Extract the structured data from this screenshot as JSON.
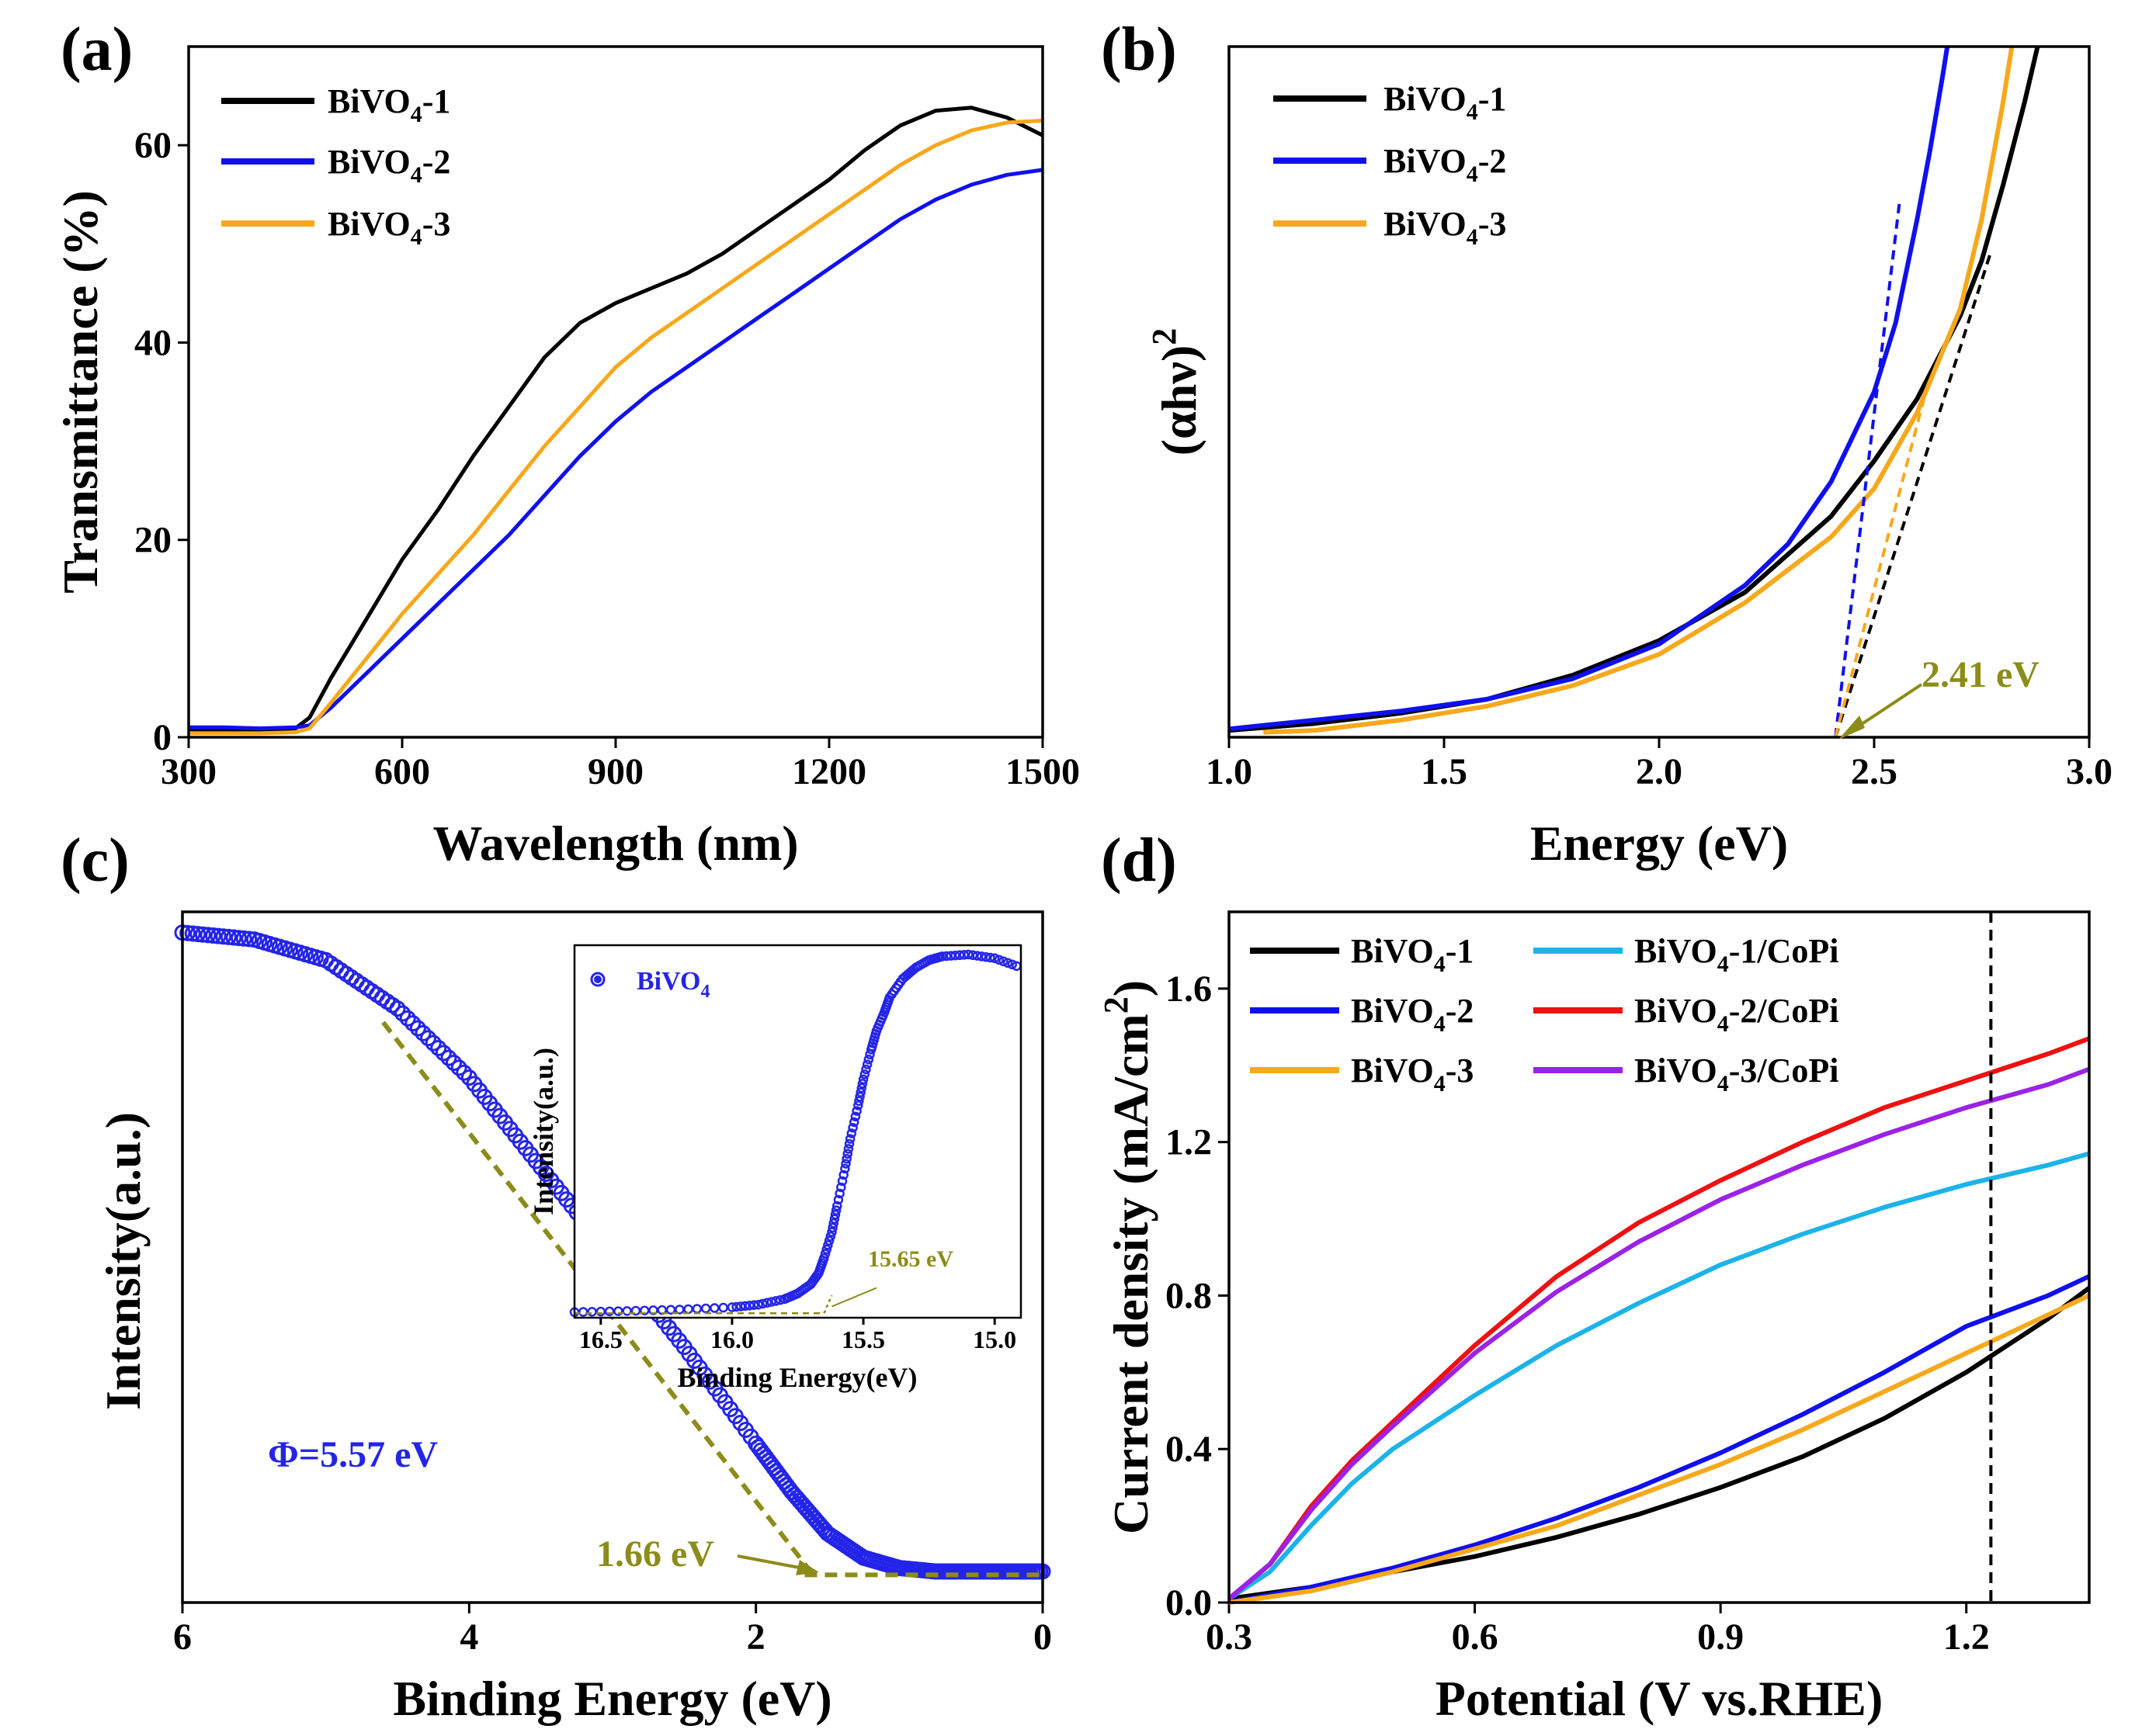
{
  "colors": {
    "black": "#000000",
    "blue": "#1010ee",
    "orange": "#f7a81b",
    "cyan": "#1cb3e8",
    "red": "#ee1111",
    "purple": "#9b22e6",
    "olive": "#8c8c1a",
    "marker_blue": "#2424e8"
  },
  "chart_data": [
    {
      "panel": "(a)",
      "type": "line",
      "title": "",
      "xlabel": "Wavelength (nm)",
      "ylabel": "Transmittance (%)",
      "xlim": [
        300,
        1500
      ],
      "ylim": [
        0,
        70
      ],
      "xticks": [
        300,
        600,
        900,
        1200,
        1500
      ],
      "yticks": [
        0,
        20,
        40,
        60
      ],
      "legend": "top-left",
      "series": [
        {
          "name": "BiVO4-1",
          "label_main": "BiVO",
          "label_sub": "4",
          "label_tail": "-1",
          "color": "black",
          "x": [
            300,
            350,
            400,
            450,
            470,
            500,
            550,
            600,
            650,
            700,
            750,
            800,
            850,
            900,
            950,
            1000,
            1050,
            1100,
            1150,
            1200,
            1250,
            1300,
            1350,
            1400,
            1450,
            1500
          ],
          "y": [
            0.8,
            0.7,
            0.7,
            0.9,
            2.0,
            6.0,
            12.0,
            18.0,
            23.0,
            28.5,
            33.5,
            38.5,
            42.0,
            44.0,
            45.5,
            47.0,
            49.0,
            51.5,
            54.0,
            56.5,
            59.5,
            62.0,
            63.5,
            63.8,
            62.8,
            61.0
          ]
        },
        {
          "name": "BiVO4-2",
          "label_main": "BiVO",
          "label_sub": "4",
          "label_tail": "-2",
          "color": "blue",
          "x": [
            300,
            350,
            400,
            450,
            470,
            500,
            550,
            600,
            650,
            700,
            750,
            800,
            850,
            900,
            950,
            1000,
            1050,
            1100,
            1150,
            1200,
            1250,
            1300,
            1350,
            1400,
            1450,
            1500
          ],
          "y": [
            1.0,
            1.0,
            0.9,
            1.0,
            1.2,
            3.0,
            6.5,
            10.0,
            13.5,
            17.0,
            20.5,
            24.5,
            28.5,
            32.0,
            35.0,
            37.5,
            40.0,
            42.5,
            45.0,
            47.5,
            50.0,
            52.5,
            54.5,
            56.0,
            57.0,
            57.5
          ]
        },
        {
          "name": "BiVO4-3",
          "label_main": "BiVO",
          "label_sub": "4",
          "label_tail": "-3",
          "color": "orange",
          "x": [
            300,
            350,
            400,
            450,
            470,
            500,
            550,
            600,
            650,
            700,
            750,
            800,
            850,
            900,
            950,
            1000,
            1050,
            1100,
            1150,
            1200,
            1250,
            1300,
            1350,
            1400,
            1450,
            1500
          ],
          "y": [
            0.4,
            0.4,
            0.4,
            0.5,
            0.9,
            3.5,
            8.0,
            12.5,
            16.5,
            20.5,
            25.0,
            29.5,
            33.5,
            37.5,
            40.5,
            43.0,
            45.5,
            48.0,
            50.5,
            53.0,
            55.5,
            58.0,
            60.0,
            61.5,
            62.3,
            62.5
          ]
        }
      ]
    },
    {
      "panel": "(b)",
      "type": "line",
      "title": "",
      "xlabel": "Energy (eV)",
      "ylabel_main": "(αhν)",
      "ylabel_sup": "2",
      "xlim": [
        1.0,
        3.0
      ],
      "ylim": [
        0,
        100
      ],
      "xticks": [
        1.0,
        1.5,
        2.0,
        2.5,
        3.0
      ],
      "yticks": [],
      "legend": "top-left",
      "annotation": "2.41 eV",
      "series": [
        {
          "name": "BiVO4-1",
          "label_main": "BiVO",
          "label_sub": "4",
          "label_tail": "-1",
          "color": "black",
          "x": [
            1.0,
            1.2,
            1.4,
            1.6,
            1.8,
            2.0,
            2.2,
            2.4,
            2.5,
            2.6,
            2.7,
            2.75,
            2.8,
            2.85,
            2.88
          ],
          "y": [
            1.0,
            2.0,
            3.5,
            5.5,
            9.0,
            14.0,
            21.0,
            32.0,
            40.0,
            49.0,
            61.0,
            69.0,
            80.0,
            92.0,
            100
          ]
        },
        {
          "name": "BiVO4-2",
          "label_main": "BiVO",
          "label_sub": "4",
          "label_tail": "-2",
          "color": "blue",
          "x": [
            1.0,
            1.2,
            1.4,
            1.6,
            1.8,
            2.0,
            2.2,
            2.3,
            2.4,
            2.5,
            2.55,
            2.6,
            2.63,
            2.66,
            2.67
          ],
          "y": [
            1.2,
            2.5,
            3.8,
            5.5,
            8.5,
            13.5,
            22.0,
            28.0,
            37.0,
            50.0,
            60.0,
            75.0,
            85.0,
            96.0,
            100
          ]
        },
        {
          "name": "BiVO4-3",
          "label_main": "BiVO",
          "label_sub": "4",
          "label_tail": "-3",
          "color": "orange",
          "x": [
            1.08,
            1.2,
            1.4,
            1.6,
            1.8,
            2.0,
            2.2,
            2.4,
            2.5,
            2.6,
            2.7,
            2.75,
            2.8,
            2.82
          ],
          "y": [
            0.7,
            1.0,
            2.5,
            4.5,
            7.5,
            12.0,
            19.5,
            29.0,
            36.0,
            47.0,
            62.0,
            75.0,
            92.0,
            100
          ]
        }
      ],
      "tangents": [
        {
          "color": "blue",
          "x": [
            2.41,
            2.56
          ],
          "y": [
            0,
            78
          ]
        },
        {
          "color": "black",
          "x": [
            2.41,
            2.77
          ],
          "y": [
            0,
            70
          ]
        },
        {
          "color": "orange",
          "x": [
            2.41,
            2.62
          ],
          "y": [
            0,
            50
          ]
        }
      ]
    },
    {
      "panel": "(c)",
      "type": "scatter",
      "title": "",
      "xlabel": "Binding Energy (eV)",
      "ylabel": "Intensity(a.u.)",
      "xlim": [
        6,
        0
      ],
      "ylim": [
        0,
        100
      ],
      "xticks": [
        6,
        4,
        2,
        0
      ],
      "yticks": [],
      "annotation_phi": "Φ=5.57 eV",
      "annotation_cutoff": "1.66 eV",
      "series": [
        {
          "name": "BiVO4",
          "color": "marker_blue",
          "x": [
            6.0,
            5.5,
            5.0,
            4.5,
            4.0,
            3.5,
            3.0,
            2.5,
            2.0,
            1.75,
            1.5,
            1.25,
            1.0,
            0.75,
            0.5,
            0.25,
            0.0
          ],
          "y": [
            97,
            96,
            93,
            86,
            76,
            63,
            50,
            37,
            23,
            16,
            10,
            6.5,
            5,
            4.5,
            4.5,
            4.5,
            4.5
          ]
        }
      ],
      "tangent": {
        "x": [
          4.6,
          1.6
        ],
        "y": [
          84,
          4
        ]
      },
      "baseline": {
        "x": [
          1.66,
          0.0
        ],
        "y": [
          4,
          4
        ]
      },
      "inset": {
        "xlabel": "Binding Energy(eV)",
        "ylabel": "Intensity(a.u.)",
        "xlim": [
          16.6,
          14.9
        ],
        "ylim": [
          0,
          100
        ],
        "xticks": [
          16.5,
          16.0,
          15.5,
          15.0
        ],
        "xtick_labels": [
          "16.5",
          "16.0",
          "15.5",
          "15.0"
        ],
        "annotation": "15.65 eV",
        "legend_main": "BiVO",
        "legend_sub": "4",
        "series": {
          "x": [
            16.6,
            16.4,
            16.2,
            16.0,
            15.9,
            15.8,
            15.75,
            15.7,
            15.67,
            15.65,
            15.62,
            15.6,
            15.57,
            15.55,
            15.52,
            15.5,
            15.47,
            15.45,
            15.42,
            15.4,
            15.35,
            15.3,
            15.25,
            15.2,
            15.1,
            15.0,
            14.9
          ],
          "y": [
            1.5,
            1.8,
            2.2,
            2.8,
            3.5,
            5.0,
            6.5,
            9.0,
            12.0,
            16.0,
            23.0,
            30.0,
            40.0,
            48.0,
            57.0,
            64.0,
            72.0,
            77.0,
            82.0,
            86.0,
            91.0,
            94.0,
            96.0,
            97.0,
            97.5,
            96.5,
            94.0
          ]
        }
      }
    },
    {
      "panel": "(d)",
      "type": "line",
      "title": "",
      "xlabel": "Potential (V vs.RHE)",
      "ylabel_main": "Current density (mA/cm",
      "ylabel_sup": "2",
      "ylabel_tail": ")",
      "xlim": [
        0.3,
        1.35
      ],
      "ylim": [
        0,
        1.8
      ],
      "xticks": [
        0.3,
        0.6,
        0.9,
        1.2
      ],
      "xtick_labels": [
        "0.3",
        "0.6",
        "0.9",
        "1.2"
      ],
      "yticks": [
        0.0,
        0.4,
        0.8,
        1.2,
        1.6
      ],
      "ytick_labels": [
        "0.0",
        "0.4",
        "0.8",
        "1.2",
        "1.6"
      ],
      "vline_x": 1.23,
      "legend": "top-left, two columns",
      "series": [
        {
          "name": "BiVO4-1",
          "label_main": "BiVO",
          "label_sub": "4",
          "label_tail": "-1",
          "color": "black",
          "x": [
            0.3,
            0.4,
            0.5,
            0.6,
            0.7,
            0.8,
            0.9,
            1.0,
            1.1,
            1.2,
            1.3,
            1.35
          ],
          "y": [
            0.01,
            0.04,
            0.08,
            0.12,
            0.17,
            0.23,
            0.3,
            0.38,
            0.48,
            0.6,
            0.74,
            0.82
          ]
        },
        {
          "name": "BiVO4-2",
          "label_main": "BiVO",
          "label_sub": "4",
          "label_tail": "-2",
          "color": "blue",
          "x": [
            0.3,
            0.4,
            0.5,
            0.6,
            0.7,
            0.8,
            0.9,
            1.0,
            1.1,
            1.2,
            1.3,
            1.35
          ],
          "y": [
            0.0,
            0.04,
            0.09,
            0.15,
            0.22,
            0.3,
            0.39,
            0.49,
            0.6,
            0.72,
            0.8,
            0.85
          ]
        },
        {
          "name": "BiVO4-3",
          "label_main": "BiVO",
          "label_sub": "4",
          "label_tail": "-3",
          "color": "orange",
          "x": [
            0.3,
            0.4,
            0.5,
            0.6,
            0.7,
            0.8,
            0.9,
            1.0,
            1.1,
            1.2,
            1.3,
            1.35
          ],
          "y": [
            0.0,
            0.03,
            0.08,
            0.14,
            0.2,
            0.28,
            0.36,
            0.45,
            0.55,
            0.65,
            0.75,
            0.8
          ]
        },
        {
          "name": "BiVO4-1/CoPi",
          "label_main": "BiVO",
          "label_sub": "4",
          "label_tail": "-1/CoPi",
          "color": "cyan",
          "x": [
            0.3,
            0.35,
            0.4,
            0.45,
            0.5,
            0.6,
            0.7,
            0.8,
            0.9,
            1.0,
            1.1,
            1.2,
            1.3,
            1.35
          ],
          "y": [
            0.01,
            0.08,
            0.2,
            0.31,
            0.4,
            0.54,
            0.67,
            0.78,
            0.88,
            0.96,
            1.03,
            1.09,
            1.14,
            1.17
          ]
        },
        {
          "name": "BiVO4-2/CoPi",
          "label_main": "BiVO",
          "label_sub": "4",
          "label_tail": "-2/CoPi",
          "color": "red",
          "x": [
            0.3,
            0.35,
            0.4,
            0.45,
            0.5,
            0.6,
            0.7,
            0.8,
            0.9,
            1.0,
            1.1,
            1.2,
            1.3,
            1.35
          ],
          "y": [
            0.01,
            0.1,
            0.25,
            0.37,
            0.47,
            0.67,
            0.85,
            0.99,
            1.1,
            1.2,
            1.29,
            1.36,
            1.43,
            1.47
          ]
        },
        {
          "name": "BiVO4-3/CoPi",
          "label_main": "BiVO",
          "label_sub": "4",
          "label_tail": "-3/CoPi",
          "color": "purple",
          "x": [
            0.3,
            0.35,
            0.4,
            0.45,
            0.5,
            0.6,
            0.7,
            0.8,
            0.9,
            1.0,
            1.1,
            1.2,
            1.3,
            1.35
          ],
          "y": [
            0.01,
            0.1,
            0.24,
            0.36,
            0.46,
            0.65,
            0.81,
            0.94,
            1.05,
            1.14,
            1.22,
            1.29,
            1.35,
            1.39
          ]
        }
      ]
    }
  ]
}
